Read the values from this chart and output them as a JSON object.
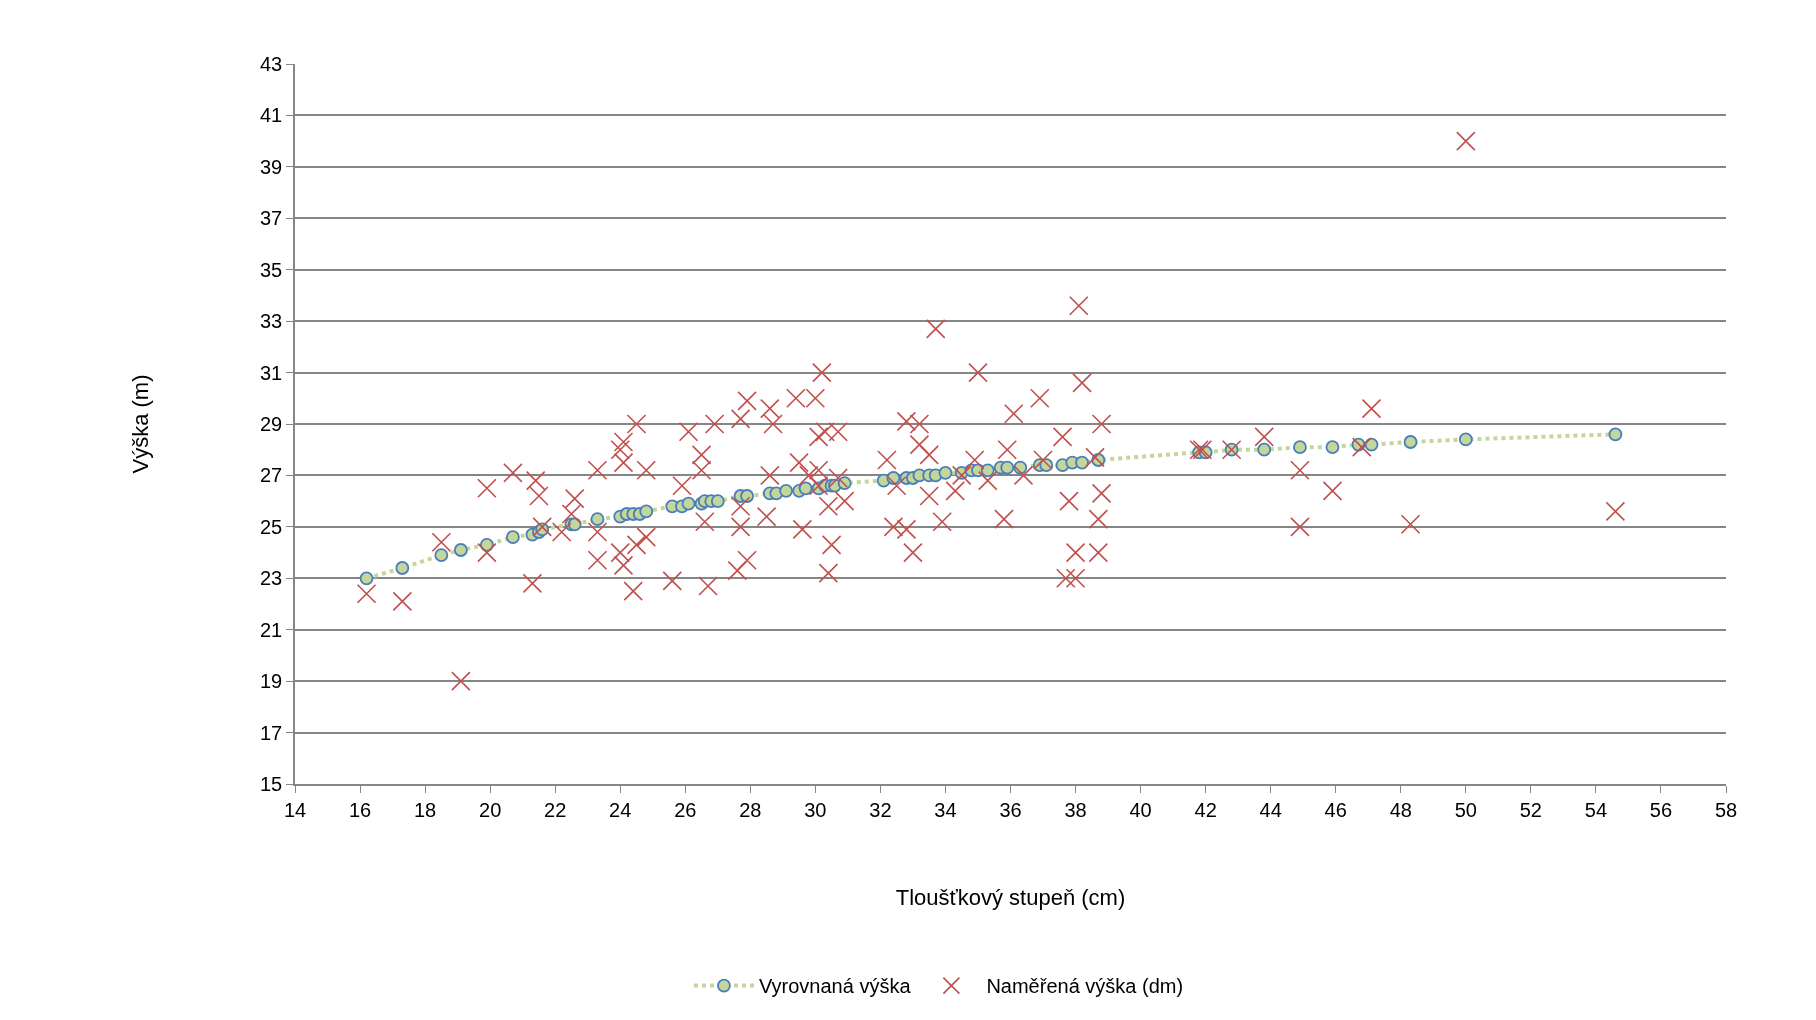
{
  "chart_data": {
    "type": "scatter",
    "xlabel": "Tloušťkový stupeň (cm)",
    "ylabel": "Výška (m)",
    "xlim": [
      14,
      58
    ],
    "xticks": [
      14,
      16,
      18,
      20,
      22,
      24,
      26,
      28,
      30,
      32,
      34,
      36,
      38,
      40,
      42,
      44,
      46,
      48,
      50,
      52,
      54,
      56,
      58
    ],
    "ylim": [
      15,
      43
    ],
    "yticks": [
      15,
      17,
      19,
      21,
      23,
      25,
      27,
      29,
      31,
      33,
      35,
      37,
      39,
      41,
      43
    ],
    "grid": "y",
    "legend": "bottom",
    "series": [
      {
        "name": "Vyrovnaná výška",
        "type": "line",
        "line_style": "dotted",
        "marker": "circle",
        "color": "#c3d69b",
        "x": [
          16.2,
          17.3,
          18.5,
          19.1,
          19.9,
          20.7,
          21.3,
          21.5,
          21.6,
          22.5,
          22.6,
          23.3,
          24.0,
          24.2,
          24.4,
          24.6,
          24.8,
          25.6,
          25.9,
          26.1,
          26.5,
          26.6,
          26.8,
          27.0,
          27.7,
          27.9,
          28.6,
          28.8,
          29.1,
          29.5,
          29.7,
          30.1,
          30.3,
          30.5,
          30.6,
          30.9,
          32.1,
          32.4,
          32.8,
          33.0,
          33.2,
          33.5,
          33.7,
          34.0,
          34.5,
          34.8,
          35.0,
          35.3,
          35.7,
          35.9,
          36.3,
          36.9,
          37.1,
          37.6,
          37.9,
          38.2,
          38.7,
          41.8,
          42.0,
          42.8,
          43.8,
          44.9,
          45.9,
          46.7,
          47.1,
          48.3,
          50.0,
          54.6
        ],
        "values": [
          23.0,
          23.4,
          23.9,
          24.1,
          24.3,
          24.6,
          24.7,
          24.8,
          24.9,
          25.1,
          25.1,
          25.3,
          25.4,
          25.5,
          25.5,
          25.5,
          25.6,
          25.8,
          25.8,
          25.9,
          25.9,
          26.0,
          26.0,
          26.0,
          26.2,
          26.2,
          26.3,
          26.3,
          26.4,
          26.4,
          26.5,
          26.5,
          26.6,
          26.6,
          26.6,
          26.7,
          26.8,
          26.9,
          26.9,
          26.9,
          27.0,
          27.0,
          27.0,
          27.1,
          27.1,
          27.2,
          27.2,
          27.2,
          27.3,
          27.3,
          27.3,
          27.4,
          27.4,
          27.4,
          27.5,
          27.5,
          27.6,
          27.9,
          27.9,
          28.0,
          28.0,
          28.1,
          28.1,
          28.2,
          28.2,
          28.3,
          28.4,
          28.6
        ]
      },
      {
        "name": "Naměřená výška (dm)",
        "type": "scatter",
        "marker": "cross",
        "color": "#c0504d",
        "x": [
          16.2,
          17.3,
          18.5,
          19.1,
          19.9,
          19.9,
          20.7,
          21.3,
          21.4,
          21.5,
          21.6,
          22.2,
          22.6,
          22.5,
          23.3,
          23.3,
          23.3,
          24.0,
          24.1,
          24.1,
          24.0,
          24.1,
          24.4,
          24.5,
          24.5,
          24.8,
          24.8,
          25.6,
          26.1,
          25.9,
          26.5,
          26.5,
          26.6,
          26.7,
          26.9,
          27.7,
          27.9,
          27.7,
          27.7,
          27.6,
          27.9,
          28.6,
          28.7,
          28.6,
          28.5,
          29.4,
          29.5,
          29.6,
          29.8,
          30.0,
          30.2,
          30.1,
          30.3,
          30.7,
          30.1,
          30.1,
          30.4,
          30.4,
          30.5,
          30.9,
          30.7,
          32.2,
          32.4,
          32.5,
          32.8,
          33.2,
          33.0,
          32.8,
          33.2,
          33.5,
          33.5,
          33.9,
          33.7,
          34.3,
          34.5,
          34.9,
          35.0,
          35.3,
          35.8,
          35.9,
          36.1,
          36.4,
          36.9,
          37.0,
          37.6,
          37.8,
          37.7,
          38.0,
          38.1,
          38.2,
          38.0,
          38.6,
          38.8,
          38.8,
          38.7,
          38.7,
          41.8,
          41.9,
          42.8,
          43.8,
          44.9,
          44.9,
          45.9,
          46.8,
          47.1,
          48.3,
          50.0,
          54.6
        ],
        "values": [
          22.4,
          22.1,
          24.4,
          19.0,
          26.5,
          24.0,
          27.1,
          22.8,
          26.8,
          26.2,
          25.0,
          24.8,
          26.1,
          25.5,
          27.2,
          24.8,
          23.7,
          28.0,
          28.3,
          27.5,
          24.0,
          23.5,
          22.5,
          29.0,
          24.3,
          24.6,
          27.2,
          22.9,
          28.7,
          26.6,
          27.8,
          27.2,
          25.2,
          22.7,
          29.0,
          29.2,
          29.9,
          25.8,
          25.0,
          23.3,
          23.7,
          29.6,
          29.0,
          27.0,
          25.4,
          30.0,
          27.5,
          24.9,
          27.0,
          30.0,
          31.0,
          28.5,
          28.7,
          28.7,
          27.2,
          26.6,
          25.8,
          23.2,
          24.3,
          26.0,
          26.9,
          27.6,
          25.0,
          26.6,
          29.1,
          29.0,
          24.0,
          24.9,
          28.2,
          27.8,
          26.2,
          25.2,
          32.7,
          26.4,
          27.0,
          27.6,
          31.0,
          26.8,
          25.3,
          28.0,
          29.4,
          27.0,
          30.0,
          27.6,
          28.5,
          26.0,
          23.0,
          23.0,
          33.6,
          30.6,
          24.0,
          27.7,
          29.0,
          26.3,
          25.3,
          24.0,
          28.0,
          28.0,
          28.0,
          28.5,
          27.2,
          25.0,
          26.4,
          28.1,
          29.6,
          25.1,
          40.0,
          25.6
        ]
      }
    ]
  }
}
